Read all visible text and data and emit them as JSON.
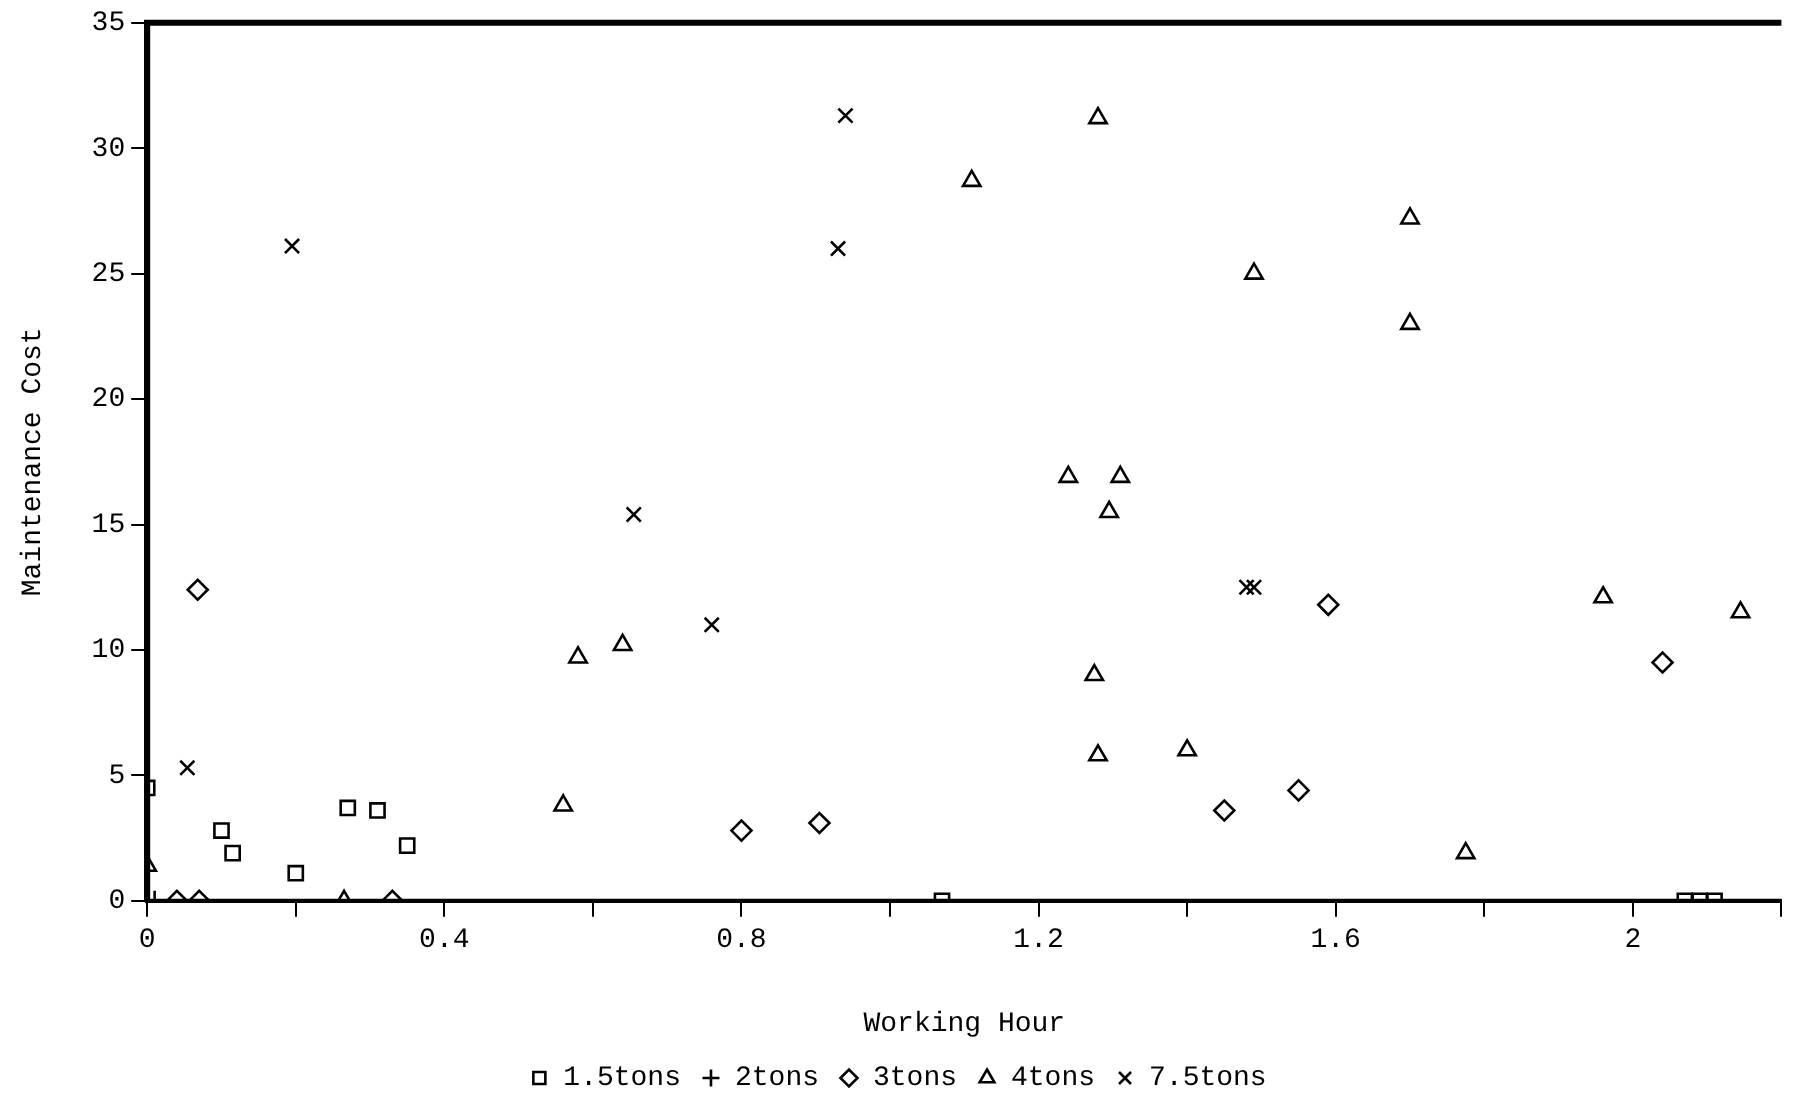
{
  "chart_data": {
    "type": "scatter",
    "xlabel": "Working Hour",
    "ylabel": "Maintenance Cost",
    "xlim": [
      0,
      2.2
    ],
    "xticks": [
      0,
      {
        "value": 0.2,
        "label": null
      },
      0.4,
      {
        "value": 0.6,
        "label": null
      },
      0.8,
      {
        "value": 1.0,
        "label": null
      },
      1.2,
      {
        "value": 1.4,
        "label": null
      },
      1.6,
      {
        "value": 1.8,
        "label": null
      },
      2,
      {
        "value": 2.2,
        "label": null
      }
    ],
    "ylim": [
      0,
      35
    ],
    "yticks": [
      0,
      5,
      10,
      15,
      20,
      25,
      30,
      35
    ],
    "grid": false,
    "legend": "bottom",
    "series": [
      {
        "name": "1.5tons",
        "color": "#000000",
        "marker": "square",
        "x": [
          0,
          0.1,
          0.115,
          0.2,
          0.27,
          0.31,
          0.35,
          1.07,
          2.07,
          2.09,
          2.11
        ],
        "values": [
          4.5,
          2.8,
          1.9,
          1.1,
          3.7,
          3.6,
          2.2,
          0,
          0,
          0,
          0
        ]
      },
      {
        "name": "2tons",
        "color": "#000000",
        "marker": "cross",
        "x": [
          0.01
        ],
        "values": [
          0
        ]
      },
      {
        "name": "3tons",
        "color": "#000000",
        "marker": "diamond",
        "x": [
          0.068,
          0.04,
          0.07,
          0.33,
          0.8,
          0.905,
          1.45,
          1.55,
          1.59,
          2.04
        ],
        "values": [
          12.4,
          0,
          0,
          0,
          2.8,
          3.1,
          3.6,
          4.4,
          11.8,
          9.5
        ]
      },
      {
        "name": "4tons",
        "color": "#000000",
        "marker": "triangle",
        "x": [
          0,
          0.265,
          0.56,
          0.58,
          0.64,
          1.11,
          1.28,
          1.24,
          1.31,
          1.295,
          1.275,
          1.28,
          1.4,
          1.49,
          1.7,
          1.7,
          1.775,
          1.96,
          2.145
        ],
        "values": [
          1.4,
          0,
          3.8,
          9.7,
          10.2,
          28.7,
          31.2,
          16.9,
          16.9,
          15.5,
          9.0,
          5.8,
          6.0,
          25.0,
          27.2,
          23.0,
          1.9,
          12.1,
          11.5
        ]
      },
      {
        "name": "7.5tons",
        "color": "#000000",
        "marker": "x",
        "x": [
          0.054,
          0.195,
          0.655,
          0.76,
          0.93,
          0.94,
          1.48,
          1.49
        ],
        "values": [
          5.3,
          26.1,
          15.4,
          11.0,
          26.0,
          31.3,
          12.5,
          12.5
        ]
      }
    ]
  }
}
